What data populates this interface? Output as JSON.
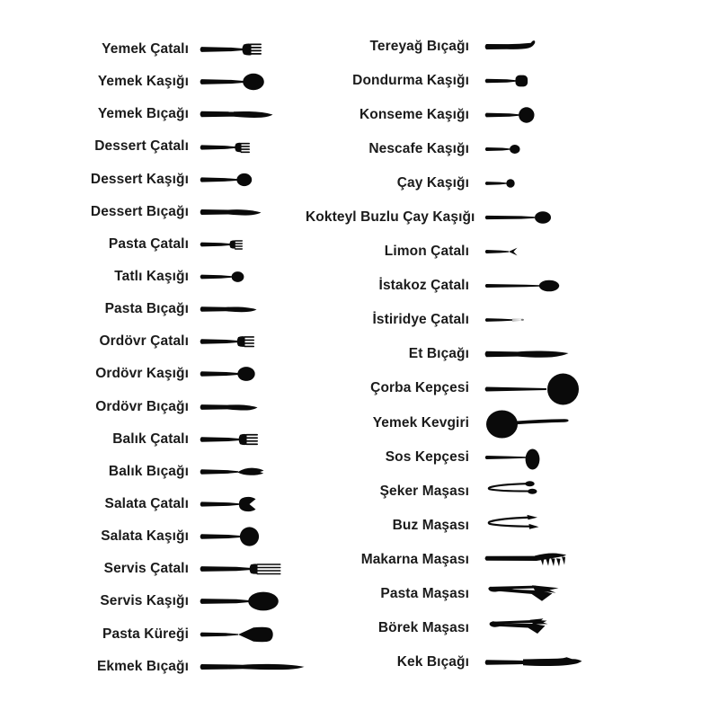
{
  "page": {
    "background_color": "#ffffff",
    "silhouette_color": "#0a0a0a",
    "text_color": "#1b1b1b"
  },
  "columns": {
    "left": {
      "items": [
        {
          "label": "Yemek Çatalı",
          "icon": "dinner-fork"
        },
        {
          "label": "Yemek Kaşığı",
          "icon": "dinner-spoon"
        },
        {
          "label": "Yemek Bıçağı",
          "icon": "dinner-knife"
        },
        {
          "label": "Dessert Çatalı",
          "icon": "dessert-fork"
        },
        {
          "label": "Dessert Kaşığı",
          "icon": "dessert-spoon"
        },
        {
          "label": "Dessert Bıçağı",
          "icon": "dessert-knife"
        },
        {
          "label": "Pasta Çatalı",
          "icon": "pastry-fork"
        },
        {
          "label": "Tatlı Kaşığı",
          "icon": "sweet-spoon"
        },
        {
          "label": "Pasta Bıçağı",
          "icon": "pastry-knife"
        },
        {
          "label": "Ordövr Çatalı",
          "icon": "hors-doeuvre-fork"
        },
        {
          "label": "Ordövr Kaşığı",
          "icon": "hors-doeuvre-spoon"
        },
        {
          "label": "Ordövr Bıçağı",
          "icon": "hors-doeuvre-knife"
        },
        {
          "label": "Balık Çatalı",
          "icon": "fish-fork"
        },
        {
          "label": "Balık Bıçağı",
          "icon": "fish-knife"
        },
        {
          "label": "Salata Çatalı",
          "icon": "salad-fork"
        },
        {
          "label": "Salata Kaşığı",
          "icon": "salad-spoon"
        },
        {
          "label": "Servis Çatalı",
          "icon": "serving-fork"
        },
        {
          "label": "Servis Kaşığı",
          "icon": "serving-spoon"
        },
        {
          "label": "Pasta Küreği",
          "icon": "cake-server"
        },
        {
          "label": "Ekmek Bıçağı",
          "icon": "bread-knife"
        }
      ]
    },
    "right": {
      "items": [
        {
          "label": "Tereyağ Bıçağı",
          "icon": "butter-knife"
        },
        {
          "label": "Dondurma Kaşığı",
          "icon": "ice-cream-spoon"
        },
        {
          "label": "Konseme Kaşığı",
          "icon": "consomme-spoon"
        },
        {
          "label": "Nescafe Kaşığı",
          "icon": "nescafe-spoon"
        },
        {
          "label": "Çay Kaşığı",
          "icon": "tea-spoon"
        },
        {
          "label": "Kokteyl Buzlu Çay Kaşığı",
          "icon": "iced-tea-spoon"
        },
        {
          "label": "Limon Çatalı",
          "icon": "lemon-fork"
        },
        {
          "label": "İstakoz Çatalı",
          "icon": "lobster-fork"
        },
        {
          "label": "İstiridye Çatalı",
          "icon": "oyster-fork"
        },
        {
          "label": "Et Bıçağı",
          "icon": "meat-knife"
        },
        {
          "label": "Çorba Kepçesi",
          "icon": "soup-ladle"
        },
        {
          "label": "Yemek Kevgiri",
          "icon": "skimmer"
        },
        {
          "label": "Sos Kepçesi",
          "icon": "sauce-ladle"
        },
        {
          "label": "Şeker Maşası",
          "icon": "sugar-tongs"
        },
        {
          "label": "Buz Maşası",
          "icon": "ice-tongs"
        },
        {
          "label": "Makarna Maşası",
          "icon": "pasta-tongs"
        },
        {
          "label": "Pasta Maşası",
          "icon": "cake-tongs"
        },
        {
          "label": "Börek Maşası",
          "icon": "pastry-tongs"
        },
        {
          "label": "Kek Bıçağı",
          "icon": "cake-knife"
        }
      ]
    }
  }
}
